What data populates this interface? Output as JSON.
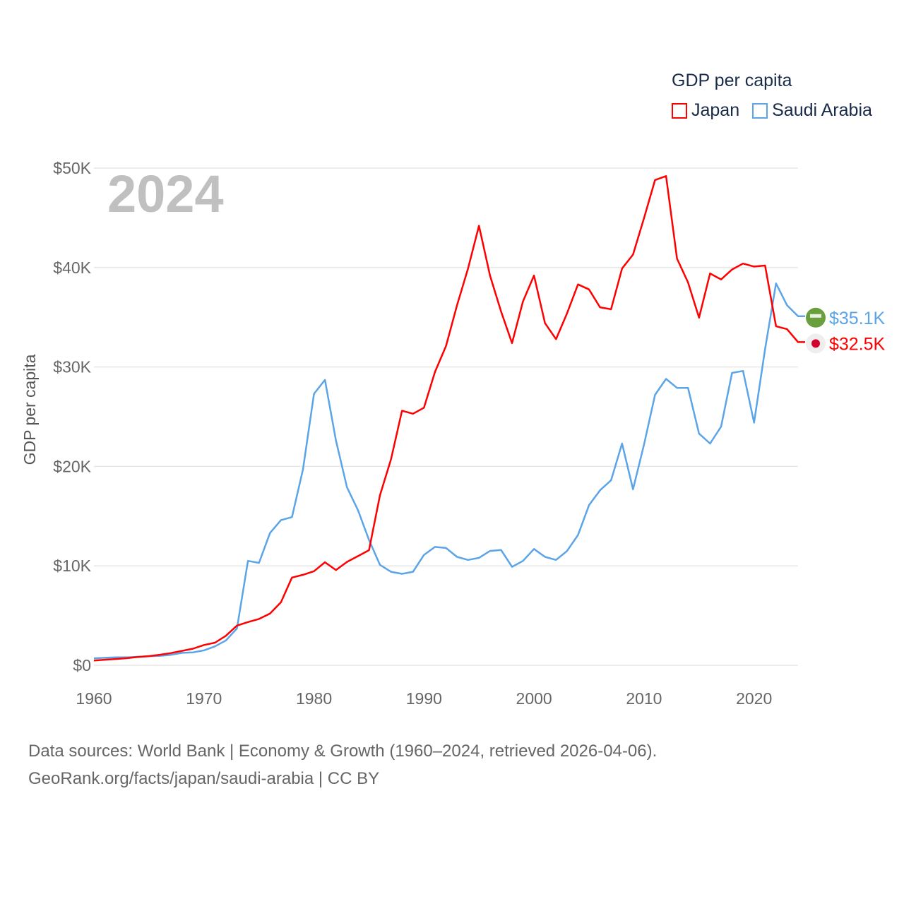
{
  "chart_data": {
    "type": "line",
    "title": "GDP per capita",
    "ylabel": "GDP per capita",
    "xlabel": "",
    "year_label": "2024",
    "xlim": [
      1960,
      2024
    ],
    "ylim": [
      0,
      50000
    ],
    "grid": true,
    "legend_placement": "top-right",
    "x_ticks": [
      1960,
      1970,
      1980,
      1990,
      2000,
      2010,
      2020
    ],
    "x_tick_labels": [
      "1960",
      "1970",
      "1980",
      "1990",
      "2000",
      "2010",
      "2020"
    ],
    "y_ticks": [
      0,
      10000,
      20000,
      30000,
      40000,
      50000
    ],
    "y_tick_labels": [
      "$0",
      "$10K",
      "$20K",
      "$30K",
      "$40K",
      "$50K"
    ],
    "x": [
      1960,
      1961,
      1962,
      1963,
      1964,
      1965,
      1966,
      1967,
      1968,
      1969,
      1970,
      1971,
      1972,
      1973,
      1974,
      1975,
      1976,
      1977,
      1978,
      1979,
      1980,
      1981,
      1982,
      1983,
      1984,
      1985,
      1986,
      1987,
      1988,
      1989,
      1990,
      1991,
      1992,
      1993,
      1994,
      1995,
      1996,
      1997,
      1998,
      1999,
      2000,
      2001,
      2002,
      2003,
      2004,
      2005,
      2006,
      2007,
      2008,
      2009,
      2010,
      2011,
      2012,
      2013,
      2014,
      2015,
      2016,
      2017,
      2018,
      2019,
      2020,
      2021,
      2022,
      2023,
      2024
    ],
    "series": [
      {
        "name": "Japan",
        "color": "#ff0000",
        "end_label": "$32.5K",
        "flag": "japan-flag",
        "values": [
          480,
          560,
          630,
          720,
          840,
          920,
          1060,
          1230,
          1450,
          1670,
          2040,
          2270,
          2970,
          3990,
          4350,
          4660,
          5200,
          6340,
          8820,
          9100,
          9460,
          10360,
          9580,
          10400,
          10980,
          11580,
          17100,
          20700,
          25600,
          25300,
          25900,
          29500,
          32100,
          36200,
          39900,
          44200,
          39200,
          35600,
          32400,
          36600,
          39200,
          34400,
          32800,
          35400,
          38300,
          37800,
          36000,
          35800,
          39900,
          41300,
          44970,
          48800,
          49200,
          40900,
          38500,
          34960,
          39400,
          38800,
          39800,
          40400,
          40100,
          40200,
          34100,
          33800,
          32500
        ]
      },
      {
        "name": "Saudi Arabia",
        "color": "#5ba4e8",
        "end_label": "$35.1K",
        "flag": "saudi-arabia-flag",
        "values": [
          700,
          750,
          800,
          800,
          850,
          900,
          950,
          1050,
          1250,
          1300,
          1500,
          1900,
          2500,
          3700,
          10500,
          10300,
          13300,
          14600,
          14900,
          19700,
          27300,
          28700,
          22600,
          17900,
          15600,
          12600,
          10100,
          9400,
          9200,
          9400,
          11100,
          11900,
          11800,
          10900,
          10600,
          10800,
          11500,
          11600,
          9900,
          10500,
          11700,
          10900,
          10600,
          11500,
          13100,
          16100,
          17600,
          18600,
          22300,
          17700,
          22200,
          27200,
          28800,
          27900,
          27900,
          23300,
          22300,
          24000,
          29400,
          29600,
          24400,
          31800,
          38400,
          36200,
          35100
        ]
      }
    ]
  },
  "legend": {
    "title": "GDP per capita",
    "items": [
      "Japan",
      "Saudi Arabia"
    ]
  },
  "footer": {
    "line1": "Data sources: World Bank | Economy & Growth (1960–2024, retrieved 2026-04-06).",
    "line2": "GeoRank.org/facts/japan/saudi-arabia | CC BY"
  }
}
